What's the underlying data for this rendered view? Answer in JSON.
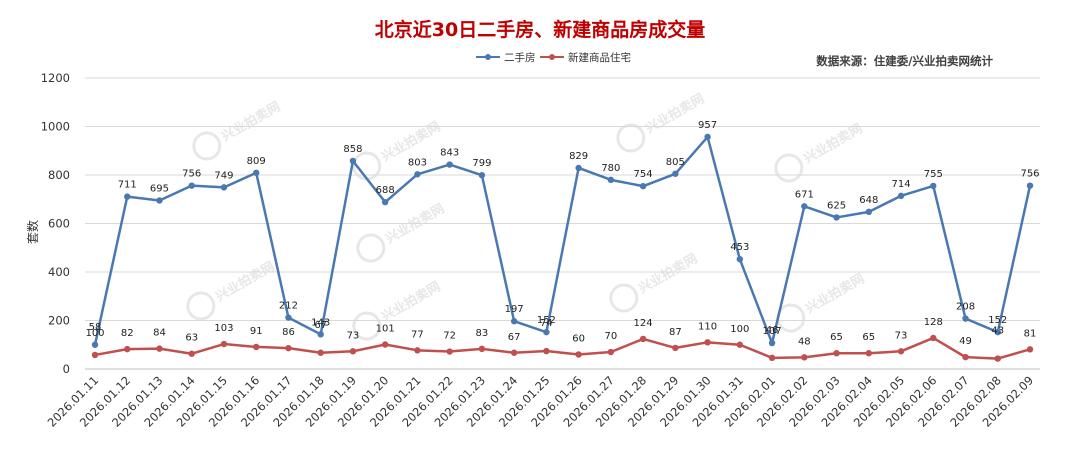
{
  "colors": {
    "title": "#c00000",
    "series_a": "#4a78b0",
    "series_b": "#c0504d",
    "grid": "#d9d9d9",
    "axis_text": "#333333",
    "source_text": "#404040",
    "watermark": "#d4d4d4"
  },
  "watermark_text": "兴业拍卖网",
  "chart_data": {
    "type": "line",
    "title": "北京近30日二手房、新建商品房成交量",
    "source": "数据来源：住建委/兴业拍卖网统计",
    "ylabel": "套数",
    "xlabel": "",
    "ylim": [
      0,
      1200
    ],
    "yticks": [
      0,
      200,
      400,
      600,
      800,
      1000,
      1200
    ],
    "grid": true,
    "legend": "top-center",
    "categories": [
      "2026.01.11",
      "2026.01.12",
      "2026.01.13",
      "2026.01.14",
      "2026.01.15",
      "2026.01.16",
      "2026.01.17",
      "2026.01.18",
      "2026.01.19",
      "2026.01.20",
      "2026.01.21",
      "2026.01.22",
      "2026.01.23",
      "2026.01.24",
      "2026.01.25",
      "2026.01.26",
      "2026.01.27",
      "2026.01.28",
      "2026.01.29",
      "2026.01.30",
      "2026.01.31",
      "2026.02.01",
      "2026.02.02",
      "2026.02.03",
      "2026.02.04",
      "2026.02.05",
      "2026.02.06",
      "2026.02.07",
      "2026.02.08",
      "2026.02.09"
    ],
    "series": [
      {
        "name": "二手房",
        "color": "#4a78b0",
        "values": [
          100,
          711,
          695,
          756,
          749,
          809,
          212,
          143,
          858,
          688,
          803,
          843,
          799,
          197,
          152,
          829,
          780,
          754,
          805,
          957,
          453,
          107,
          671,
          625,
          648,
          714,
          755,
          208,
          152,
          756
        ]
      },
      {
        "name": "新建商品住宅",
        "color": "#c0504d",
        "values": [
          58,
          82,
          84,
          63,
          103,
          91,
          86,
          67,
          73,
          101,
          77,
          72,
          83,
          67,
          74,
          60,
          70,
          124,
          87,
          110,
          100,
          46,
          48,
          65,
          65,
          73,
          128,
          49,
          43,
          81
        ]
      }
    ]
  }
}
